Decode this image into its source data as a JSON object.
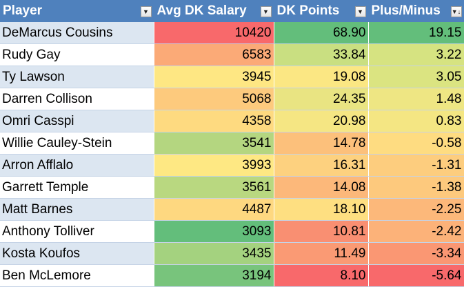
{
  "headers": {
    "player": "Player",
    "salary": "Avg DK Salary",
    "points": "DK Points",
    "plusminus": "Plus/Minus"
  },
  "rows": [
    {
      "player": "DeMarcus Cousins",
      "salary": "10420",
      "points": "68.90",
      "plusminus": "19.15",
      "colors": [
        "#f8696b",
        "#63be7b",
        "#63be7b"
      ]
    },
    {
      "player": "Rudy Gay",
      "salary": "6583",
      "points": "33.84",
      "plusminus": "3.22",
      "colors": [
        "#fbaa77",
        "#c9df81",
        "#d6e381"
      ]
    },
    {
      "player": "Ty Lawson",
      "salary": "3945",
      "points": "19.08",
      "plusminus": "3.05",
      "colors": [
        "#fee783",
        "#fbe783",
        "#dbe481"
      ]
    },
    {
      "player": "Darren Collison",
      "salary": "5068",
      "points": "24.35",
      "plusminus": "1.48",
      "colors": [
        "#fdca7d",
        "#e9e482",
        "#eee683"
      ]
    },
    {
      "player": "Omri Casspi",
      "salary": "4358",
      "points": "20.98",
      "plusminus": "0.83",
      "colors": [
        "#feda80",
        "#f5e683",
        "#f4e683"
      ]
    },
    {
      "player": "Willie Cauley-Stein",
      "salary": "3541",
      "points": "14.78",
      "plusminus": "-0.58",
      "colors": [
        "#b4d680",
        "#fcc07b",
        "#fedc81"
      ]
    },
    {
      "player": "Arron Afflalo",
      "salary": "3993",
      "points": "16.31",
      "plusminus": "-1.31",
      "colors": [
        "#fee883",
        "#fdd17f",
        "#fdcd7e"
      ]
    },
    {
      "player": "Garrett Temple",
      "salary": "3561",
      "points": "14.08",
      "plusminus": "-1.38",
      "colors": [
        "#b9d880",
        "#fcb87a",
        "#fdc97d"
      ]
    },
    {
      "player": "Matt Barnes",
      "salary": "4487",
      "points": "18.10",
      "plusminus": "-2.25",
      "colors": [
        "#fed880",
        "#fedf81",
        "#fcb87a"
      ]
    },
    {
      "player": "Anthony Tolliver",
      "salary": "3093",
      "points": "10.81",
      "plusminus": "-2.42",
      "colors": [
        "#63be7b",
        "#f98f72",
        "#fcb279"
      ]
    },
    {
      "player": "Kosta Koufos",
      "salary": "3435",
      "points": "11.49",
      "plusminus": "-3.34",
      "colors": [
        "#a4d27f",
        "#fa9a74",
        "#fa9773"
      ]
    },
    {
      "player": "Ben McLemore",
      "salary": "3194",
      "points": "8.10",
      "plusminus": "-5.64",
      "colors": [
        "#78c47c",
        "#f8696b",
        "#f8696b"
      ]
    }
  ],
  "icons": {
    "filter": "dropdown-arrow-icon",
    "sort": "sorted-filter-icon"
  }
}
